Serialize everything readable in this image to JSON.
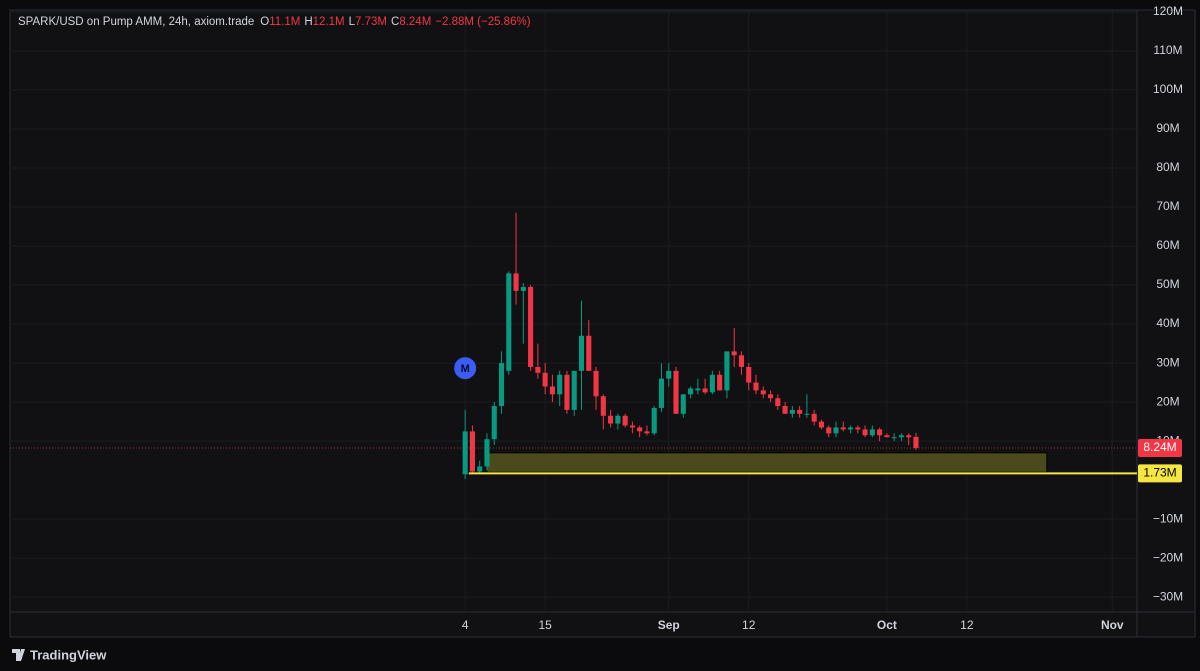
{
  "chart_data": {
    "type": "candlestick",
    "title": "SPARK/USD on Pump AMM, 24h, axiom.trade",
    "header": [
      {
        "key": "O",
        "value": "11.1M"
      },
      {
        "key": "H",
        "value": "12.1M"
      },
      {
        "key": "L",
        "value": "7.73M"
      },
      {
        "key": "C",
        "value": "8.24M"
      }
    ],
    "change": "−2.88M (−25.86%)",
    "up_color": "#089981",
    "down_color": "#f23645",
    "x": [
      0,
      1,
      2,
      3,
      4,
      5,
      6,
      7,
      8,
      9,
      10,
      11,
      12,
      13,
      14,
      15,
      16,
      17,
      18,
      19,
      20,
      21,
      22,
      23,
      24,
      25,
      26,
      27,
      28,
      29,
      30,
      31,
      32,
      33,
      34,
      35,
      36,
      37,
      38,
      39,
      40,
      41,
      42,
      43,
      44,
      45,
      46,
      47,
      48,
      49,
      50,
      51,
      52,
      53,
      54,
      55,
      56,
      57,
      58,
      59,
      60,
      61,
      62
    ],
    "open": [
      1.5,
      12.5,
      2.2,
      3.5,
      10.5,
      19,
      28,
      53,
      48.5,
      49.5,
      29,
      27.5,
      24,
      22,
      27,
      18,
      28,
      37,
      28,
      21.5,
      16.5,
      14.5,
      16.5,
      14,
      13.5,
      12.5,
      12,
      18.5,
      26,
      28,
      17,
      22,
      23,
      23.5,
      22.5,
      27,
      23,
      33,
      32,
      29,
      25,
      23,
      22,
      21,
      19,
      17,
      18,
      17,
      17,
      15,
      13.5,
      12,
      13.5,
      13,
      13.5,
      13,
      11.5,
      13,
      11.5,
      11,
      11,
      11.5,
      11.1
    ],
    "high": [
      18,
      14,
      5,
      12,
      20,
      33,
      53.5,
      68.5,
      50.5,
      50,
      35,
      30,
      27,
      28,
      28,
      28,
      46,
      41,
      29,
      22,
      18,
      17,
      17,
      15,
      14,
      14,
      19,
      30,
      30,
      29,
      22,
      24,
      26,
      26,
      28,
      28,
      33,
      39,
      33,
      30,
      27,
      24,
      23,
      22,
      20,
      19,
      19,
      22,
      18,
      15.5,
      14,
      15,
      15,
      14,
      14,
      14,
      14,
      13.5,
      12,
      12,
      12,
      12,
      12.1
    ],
    "low": [
      0.3,
      1.8,
      1.7,
      2.5,
      9,
      17,
      27,
      45,
      35,
      28,
      26,
      22,
      20,
      19,
      17,
      16.5,
      18,
      28,
      18,
      13,
      13.5,
      13,
      13.5,
      12,
      11,
      11.5,
      11.5,
      17.5,
      24,
      17,
      16,
      21,
      22,
      22,
      22,
      23,
      21,
      29,
      27,
      23,
      22,
      21,
      20,
      18,
      17,
      16,
      16,
      16,
      14,
      13,
      11,
      11,
      12.5,
      12,
      12,
      11,
      11,
      10,
      11,
      10,
      10,
      9,
      7.73
    ],
    "close": [
      12.5,
      2.2,
      3.5,
      10.5,
      19,
      30,
      53,
      48.5,
      49.5,
      29,
      27.5,
      24,
      22,
      27,
      18,
      28,
      37,
      28,
      21.5,
      16.5,
      14.5,
      16.5,
      14,
      13.5,
      12.5,
      12,
      18.5,
      26,
      28,
      17,
      22,
      23.5,
      23.5,
      22.5,
      27,
      23,
      33,
      32,
      29,
      25,
      23,
      22,
      21,
      19,
      17,
      18,
      17,
      17,
      15,
      13.5,
      12,
      13.5,
      13,
      13.5,
      13,
      11.5,
      13,
      11.5,
      11,
      11,
      11.5,
      11,
      8.24
    ],
    "xlim": [
      -62.6,
      92.4
    ],
    "xticks": [
      {
        "value": 0,
        "label": "4"
      },
      {
        "value": 11,
        "label": "15"
      },
      {
        "value": 28,
        "label": "Sep"
      },
      {
        "value": 39,
        "label": "12"
      },
      {
        "value": 58,
        "label": "Oct"
      },
      {
        "value": 69,
        "label": "12"
      },
      {
        "value": 89,
        "label": "Nov"
      }
    ],
    "ylim": [
      -33.8,
      120.5
    ],
    "yticks": [
      {
        "value": 120,
        "label": "120M"
      },
      {
        "value": 110,
        "label": "110M"
      },
      {
        "value": 100,
        "label": "100M"
      },
      {
        "value": 90,
        "label": "90M"
      },
      {
        "value": 80,
        "label": "80M"
      },
      {
        "value": 70,
        "label": "70M"
      },
      {
        "value": 60,
        "label": "60M"
      },
      {
        "value": 50,
        "label": "50M"
      },
      {
        "value": 40,
        "label": "40M"
      },
      {
        "value": 30,
        "label": "30M"
      },
      {
        "value": 20,
        "label": "20M"
      },
      {
        "value": 10,
        "label": "10M"
      },
      {
        "value": -10,
        "label": "−10M"
      },
      {
        "value": -20,
        "label": "−20M"
      },
      {
        "value": -30,
        "label": "−30M"
      }
    ],
    "grid": true,
    "zone": {
      "x": [
        3,
        80
      ],
      "y": [
        2,
        7
      ],
      "color": "#4a4a1c"
    },
    "hline": {
      "value": 1.73,
      "label": "1.73M",
      "x": 0.5,
      "color": "#f5e642"
    },
    "price_line": {
      "value": 8.24,
      "label": "8.24M"
    },
    "marker": {
      "label": "M",
      "x": 0,
      "y": 28.7,
      "color": "#3b5cf5"
    },
    "brand": "TradingView"
  }
}
